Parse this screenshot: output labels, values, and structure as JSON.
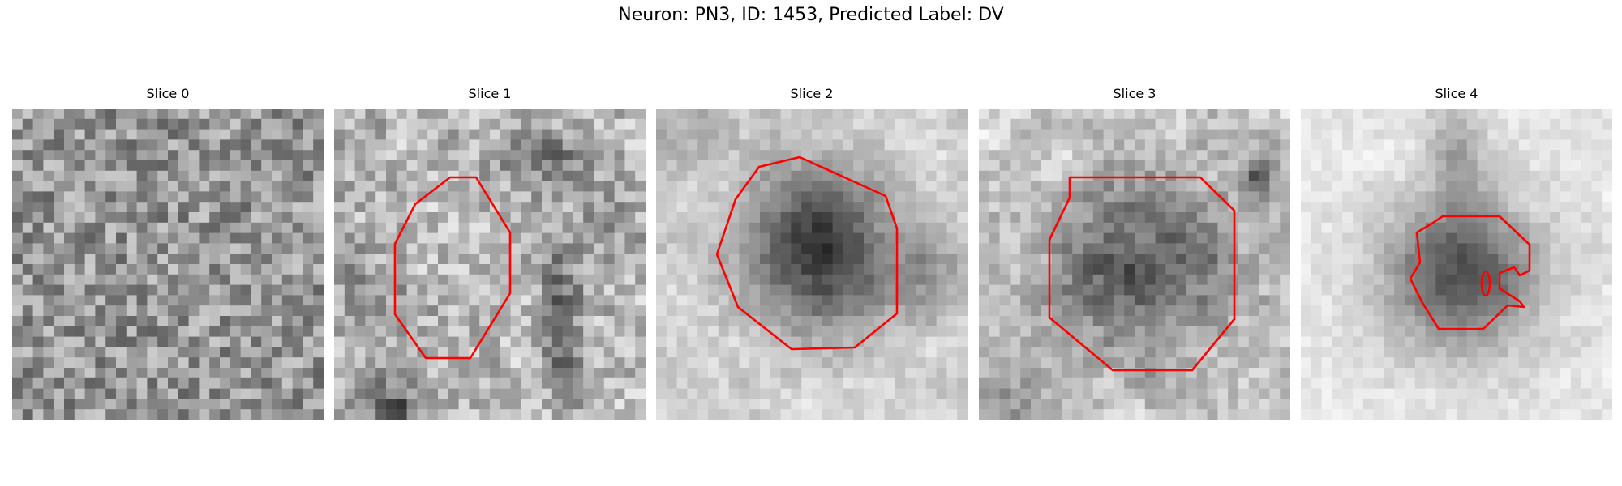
{
  "figure": {
    "title": "Neuron: PN3, ID: 1453, Predicted Label: DV"
  },
  "slices": [
    {
      "title": "Slice 0",
      "has_outline": false,
      "visual": "uniform gray noise texture"
    },
    {
      "title": "Slice 1",
      "has_outline": true,
      "visual": "light granular texture with dark debris near bottom-left and right"
    },
    {
      "title": "Slice 2",
      "has_outline": true,
      "visual": "dark round cell body inside outline, bright surroundings"
    },
    {
      "title": "Slice 3",
      "has_outline": true,
      "visual": "dark mottled round cell body inside outline"
    },
    {
      "title": "Slice 4",
      "has_outline": true,
      "visual": "dark blurred cell body with small irregular outline"
    }
  ],
  "colors": {
    "outline": "#ff0000",
    "text": "#000000",
    "background": "#ffffff"
  }
}
